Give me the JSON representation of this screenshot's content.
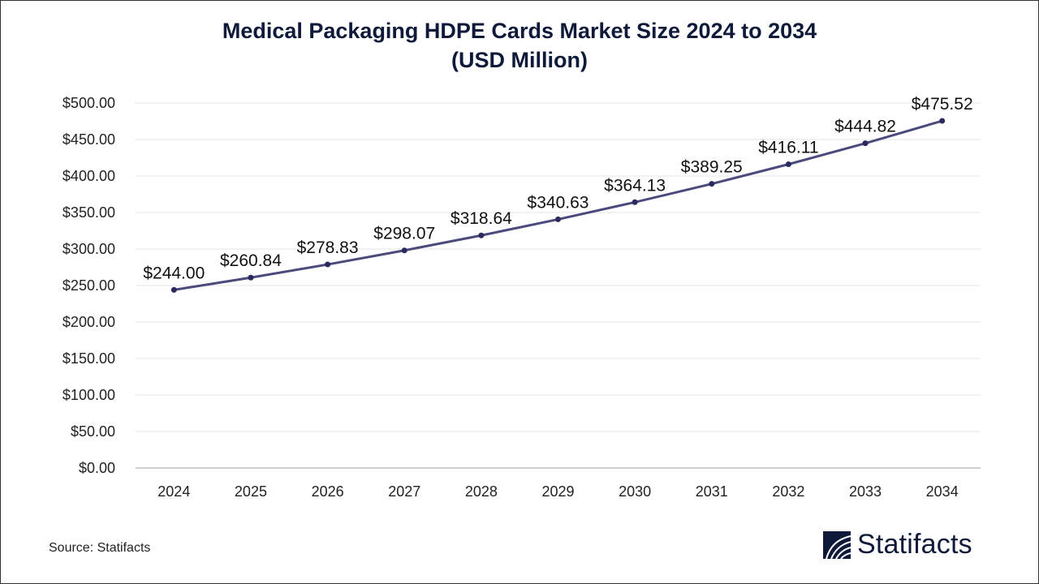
{
  "chart_data": {
    "type": "line",
    "title": "Medical Packaging HDPE Cards Market Size 2024 to 2034",
    "subtitle": "(USD Million)",
    "categories": [
      "2024",
      "2025",
      "2026",
      "2027",
      "2028",
      "2029",
      "2030",
      "2031",
      "2032",
      "2033",
      "2034"
    ],
    "values": [
      244.0,
      260.84,
      278.83,
      298.07,
      318.64,
      340.63,
      364.13,
      389.25,
      416.11,
      444.82,
      475.52
    ],
    "data_labels": [
      "$244.00",
      "$260.84",
      "$278.83",
      "$298.07",
      "$318.64",
      "$340.63",
      "$364.13",
      "$389.25",
      "$416.11",
      "$444.82",
      "$475.52"
    ],
    "yticks": [
      "$0.00",
      "$50.00",
      "$100.00",
      "$150.00",
      "$200.00",
      "$250.00",
      "$300.00",
      "$350.00",
      "$400.00",
      "$450.00",
      "$500.00"
    ],
    "ylim": [
      0,
      500
    ],
    "grid": true,
    "line_color": "#4b4a7c",
    "marker_color": "#2b2a5e"
  },
  "source": "Source: Statifacts",
  "logo": "Statifacts"
}
